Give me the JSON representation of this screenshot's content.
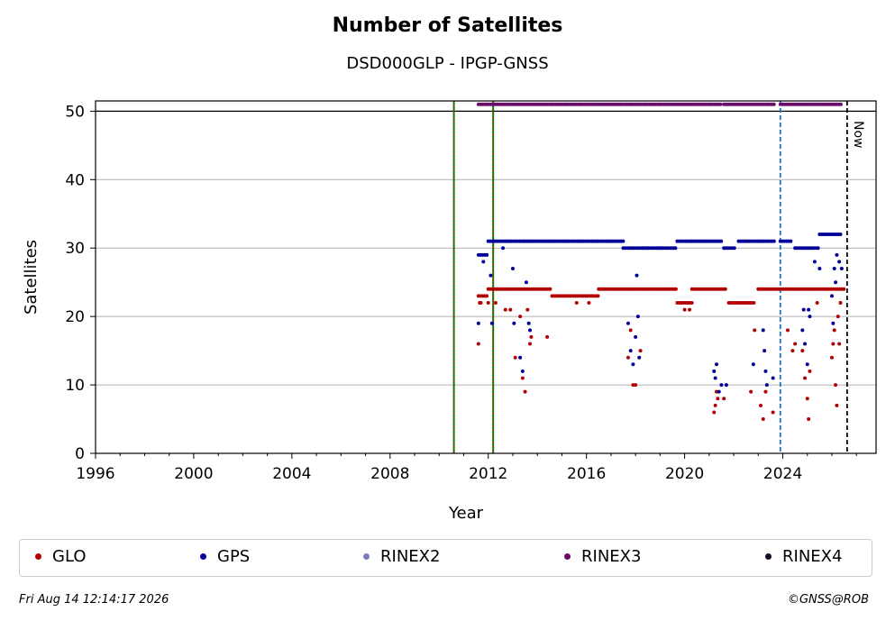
{
  "chart_data": {
    "type": "scatter",
    "title": "Number of Satellites",
    "subtitle": "DSD000GLP - IPGP-GNSS",
    "xlabel": "Year",
    "ylabel": "Satellites",
    "xlim": [
      1996,
      2027.8
    ],
    "ylim": [
      0,
      51.5
    ],
    "xticks": [
      "1996",
      "2000",
      "2004",
      "2008",
      "2012",
      "2016",
      "2020",
      "2024"
    ],
    "yticks": [
      "0",
      "10",
      "20",
      "30",
      "40",
      "50"
    ],
    "grid": "horizontal",
    "legend_placement": "bottom",
    "vlines": [
      {
        "x": 2010.6,
        "color": "#008000",
        "style": "solid-with-red-dots"
      },
      {
        "x": 2012.2,
        "color": "#008000",
        "style": "solid-with-red-dots"
      },
      {
        "x": 2023.9,
        "color": "#1f6fd1",
        "style": "dashed"
      },
      {
        "x": 2026.62,
        "color": "#000000",
        "style": "dashed",
        "label": "Now"
      }
    ],
    "hline": {
      "y": 50,
      "color": "#000000"
    },
    "series": [
      {
        "name": "GLO",
        "color": "#b30000",
        "baseline_segments": [
          {
            "start": 2011.6,
            "end": 2012.0,
            "value": 23
          },
          {
            "start": 2012.0,
            "end": 2013.5,
            "value": 24
          },
          {
            "start": 2013.5,
            "end": 2014.6,
            "value": 24
          },
          {
            "start": 2014.6,
            "end": 2016.5,
            "value": 23
          },
          {
            "start": 2016.5,
            "end": 2019.7,
            "value": 24
          },
          {
            "start": 2019.7,
            "end": 2020.3,
            "value": 22
          },
          {
            "start": 2020.3,
            "end": 2021.7,
            "value": 24
          },
          {
            "start": 2021.8,
            "end": 2022.9,
            "value": 22
          },
          {
            "start": 2023.0,
            "end": 2026.5,
            "value": 24
          }
        ],
        "outliers": [
          [
            2011.6,
            16
          ],
          [
            2011.65,
            22
          ],
          [
            2011.7,
            22
          ],
          [
            2012.0,
            22
          ],
          [
            2012.3,
            22
          ],
          [
            2012.7,
            21
          ],
          [
            2012.9,
            21
          ],
          [
            2013.1,
            14
          ],
          [
            2013.3,
            20
          ],
          [
            2013.4,
            11
          ],
          [
            2013.5,
            9
          ],
          [
            2013.6,
            21
          ],
          [
            2013.7,
            16
          ],
          [
            2013.75,
            17
          ],
          [
            2014.4,
            17
          ],
          [
            2015.6,
            22
          ],
          [
            2016.1,
            22
          ],
          [
            2017.7,
            14
          ],
          [
            2017.8,
            18
          ],
          [
            2017.9,
            10
          ],
          [
            2018.0,
            10
          ],
          [
            2018.2,
            15
          ],
          [
            2020.0,
            21
          ],
          [
            2020.2,
            21
          ],
          [
            2021.2,
            6
          ],
          [
            2021.25,
            7
          ],
          [
            2021.3,
            9
          ],
          [
            2021.35,
            8
          ],
          [
            2021.6,
            8
          ],
          [
            2022.7,
            9
          ],
          [
            2022.85,
            18
          ],
          [
            2023.1,
            7
          ],
          [
            2023.2,
            5
          ],
          [
            2023.3,
            9
          ],
          [
            2023.6,
            6
          ],
          [
            2024.2,
            18
          ],
          [
            2024.4,
            15
          ],
          [
            2024.5,
            16
          ],
          [
            2024.8,
            15
          ],
          [
            2024.9,
            11
          ],
          [
            2025.0,
            8
          ],
          [
            2025.05,
            5
          ],
          [
            2025.1,
            12
          ],
          [
            2025.4,
            22
          ],
          [
            2026.0,
            14
          ],
          [
            2026.05,
            16
          ],
          [
            2026.1,
            18
          ],
          [
            2026.15,
            10
          ],
          [
            2026.2,
            7
          ],
          [
            2026.25,
            20
          ],
          [
            2026.3,
            16
          ],
          [
            2026.35,
            22
          ]
        ]
      },
      {
        "name": "GPS",
        "color": "#000099",
        "baseline_segments": [
          {
            "start": 2011.6,
            "end": 2012.0,
            "value": 29
          },
          {
            "start": 2012.0,
            "end": 2013.5,
            "value": 31
          },
          {
            "start": 2013.5,
            "end": 2017.5,
            "value": 31
          },
          {
            "start": 2017.5,
            "end": 2019.7,
            "value": 30
          },
          {
            "start": 2019.7,
            "end": 2020.3,
            "value": 31
          },
          {
            "start": 2020.3,
            "end": 2021.5,
            "value": 31
          },
          {
            "start": 2021.6,
            "end": 2022.1,
            "value": 30
          },
          {
            "start": 2022.2,
            "end": 2023.7,
            "value": 31
          },
          {
            "start": 2023.9,
            "end": 2024.4,
            "value": 31
          },
          {
            "start": 2024.5,
            "end": 2025.5,
            "value": 30
          },
          {
            "start": 2025.5,
            "end": 2026.4,
            "value": 32
          }
        ],
        "outliers": [
          [
            2011.6,
            19
          ],
          [
            2011.8,
            28
          ],
          [
            2012.1,
            26
          ],
          [
            2012.15,
            19
          ],
          [
            2012.6,
            30
          ],
          [
            2013.0,
            27
          ],
          [
            2013.05,
            19
          ],
          [
            2013.3,
            14
          ],
          [
            2013.4,
            12
          ],
          [
            2013.55,
            25
          ],
          [
            2013.65,
            19
          ],
          [
            2013.7,
            18
          ],
          [
            2017.7,
            19
          ],
          [
            2017.8,
            15
          ],
          [
            2017.9,
            13
          ],
          [
            2018.0,
            17
          ],
          [
            2018.05,
            26
          ],
          [
            2018.1,
            20
          ],
          [
            2018.15,
            14
          ],
          [
            2021.2,
            12
          ],
          [
            2021.25,
            11
          ],
          [
            2021.3,
            13
          ],
          [
            2021.4,
            9
          ],
          [
            2021.5,
            10
          ],
          [
            2021.7,
            10
          ],
          [
            2022.8,
            13
          ],
          [
            2023.2,
            18
          ],
          [
            2023.25,
            15
          ],
          [
            2023.3,
            12
          ],
          [
            2023.35,
            10
          ],
          [
            2023.6,
            11
          ],
          [
            2024.8,
            18
          ],
          [
            2024.85,
            21
          ],
          [
            2024.9,
            16
          ],
          [
            2025.0,
            13
          ],
          [
            2025.05,
            21
          ],
          [
            2025.1,
            20
          ],
          [
            2025.3,
            28
          ],
          [
            2025.5,
            27
          ],
          [
            2026.0,
            23
          ],
          [
            2026.05,
            19
          ],
          [
            2026.1,
            27
          ],
          [
            2026.15,
            25
          ],
          [
            2026.2,
            29
          ],
          [
            2026.3,
            28
          ],
          [
            2026.4,
            27
          ]
        ]
      },
      {
        "name": "RINEX2",
        "color": "#7b7bbd",
        "baseline_segments": [],
        "outliers": []
      },
      {
        "name": "RINEX3",
        "color": "#6a0a6a",
        "baseline_segments": [
          {
            "start": 2011.6,
            "end": 2021.5,
            "value": 51
          },
          {
            "start": 2021.6,
            "end": 2023.7,
            "value": 51
          },
          {
            "start": 2023.9,
            "end": 2026.4,
            "value": 51
          }
        ],
        "outliers": []
      },
      {
        "name": "RINEX4",
        "color": "#1a0a2a",
        "baseline_segments": [],
        "outliers": []
      }
    ]
  },
  "legend": {
    "items": [
      {
        "label": "GLO",
        "color": "#b30000"
      },
      {
        "label": "GPS",
        "color": "#000099"
      },
      {
        "label": "RINEX2",
        "color": "#7b7bbd"
      },
      {
        "label": "RINEX3",
        "color": "#6a0a6a"
      },
      {
        "label": "RINEX4",
        "color": "#1a0a2a"
      }
    ]
  },
  "footer": {
    "left": "Fri Aug 14 12:14:17 2026",
    "right": "©GNSS@ROB"
  }
}
